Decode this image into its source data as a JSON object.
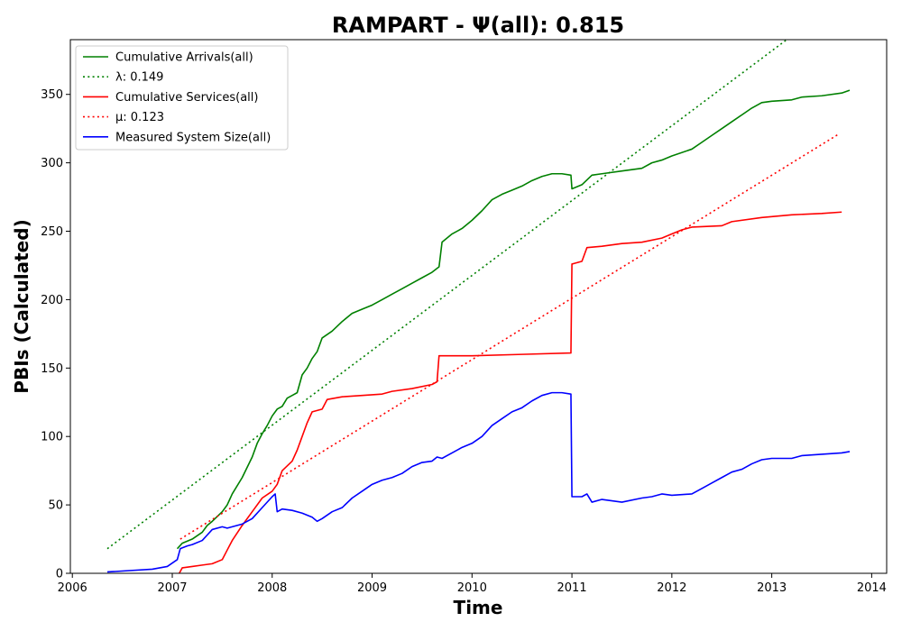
{
  "chart_data": {
    "type": "line",
    "title": "RAMPART -  Ψ(all): 0.815",
    "xlabel": "Time",
    "ylabel": "PBIs (Calculated)",
    "xlim": [
      2005.98,
      2014.15
    ],
    "ylim": [
      0,
      390
    ],
    "x_ticks": [
      "2006",
      "2007",
      "2008",
      "2009",
      "2010",
      "2011",
      "2012",
      "2013",
      "2014"
    ],
    "x_tick_values": [
      2006,
      2007,
      2008,
      2009,
      2010,
      2011,
      2012,
      2013,
      2014
    ],
    "y_ticks": [
      "0",
      "50",
      "100",
      "150",
      "200",
      "250",
      "300",
      "350"
    ],
    "y_tick_values": [
      0,
      50,
      100,
      150,
      200,
      250,
      300,
      350
    ],
    "grid": false,
    "legend_position": "top-left",
    "series": [
      {
        "name": "Cumulative Arrivals(all)",
        "color": "#008000",
        "style": "solid",
        "points": [
          [
            2007.05,
            18
          ],
          [
            2007.1,
            22
          ],
          [
            2007.2,
            25
          ],
          [
            2007.3,
            30
          ],
          [
            2007.35,
            35
          ],
          [
            2007.4,
            38
          ],
          [
            2007.5,
            45
          ],
          [
            2007.55,
            50
          ],
          [
            2007.6,
            58
          ],
          [
            2007.7,
            70
          ],
          [
            2007.8,
            85
          ],
          [
            2007.85,
            95
          ],
          [
            2007.9,
            102
          ],
          [
            2007.95,
            108
          ],
          [
            2008.0,
            115
          ],
          [
            2008.05,
            120
          ],
          [
            2008.1,
            122
          ],
          [
            2008.15,
            128
          ],
          [
            2008.2,
            130
          ],
          [
            2008.25,
            132
          ],
          [
            2008.3,
            145
          ],
          [
            2008.35,
            150
          ],
          [
            2008.4,
            157
          ],
          [
            2008.45,
            162
          ],
          [
            2008.5,
            172
          ],
          [
            2008.6,
            177
          ],
          [
            2008.7,
            184
          ],
          [
            2008.8,
            190
          ],
          [
            2008.9,
            193
          ],
          [
            2009.0,
            196
          ],
          [
            2009.1,
            200
          ],
          [
            2009.2,
            204
          ],
          [
            2009.3,
            208
          ],
          [
            2009.4,
            212
          ],
          [
            2009.5,
            216
          ],
          [
            2009.6,
            220
          ],
          [
            2009.67,
            224
          ],
          [
            2009.7,
            242
          ],
          [
            2009.8,
            248
          ],
          [
            2009.9,
            252
          ],
          [
            2010.0,
            258
          ],
          [
            2010.1,
            265
          ],
          [
            2010.2,
            273
          ],
          [
            2010.3,
            277
          ],
          [
            2010.4,
            280
          ],
          [
            2010.5,
            283
          ],
          [
            2010.6,
            287
          ],
          [
            2010.7,
            290
          ],
          [
            2010.8,
            292
          ],
          [
            2010.9,
            292
          ],
          [
            2010.99,
            291
          ],
          [
            2011.0,
            281
          ],
          [
            2011.1,
            284
          ],
          [
            2011.2,
            291
          ],
          [
            2011.3,
            292
          ],
          [
            2011.5,
            294
          ],
          [
            2011.7,
            296
          ],
          [
            2011.8,
            300
          ],
          [
            2011.9,
            302
          ],
          [
            2012.0,
            305
          ],
          [
            2012.2,
            310
          ],
          [
            2012.3,
            315
          ],
          [
            2012.4,
            320
          ],
          [
            2012.5,
            325
          ],
          [
            2012.6,
            330
          ],
          [
            2012.7,
            335
          ],
          [
            2012.8,
            340
          ],
          [
            2012.9,
            344
          ],
          [
            2013.0,
            345
          ],
          [
            2013.2,
            346
          ],
          [
            2013.3,
            348
          ],
          [
            2013.5,
            349
          ],
          [
            2013.7,
            351
          ],
          [
            2013.78,
            353
          ]
        ]
      },
      {
        "name": "λ: 0.149",
        "color": "#008000",
        "style": "dotted",
        "points": [
          [
            2006.35,
            18
          ],
          [
            2013.15,
            390
          ]
        ]
      },
      {
        "name": "Cumulative Services(all)",
        "color": "#ff0000",
        "style": "solid",
        "points": [
          [
            2007.07,
            0
          ],
          [
            2007.1,
            4
          ],
          [
            2007.2,
            5
          ],
          [
            2007.3,
            6
          ],
          [
            2007.4,
            7
          ],
          [
            2007.5,
            10
          ],
          [
            2007.55,
            17
          ],
          [
            2007.6,
            24
          ],
          [
            2007.7,
            35
          ],
          [
            2007.8,
            45
          ],
          [
            2007.9,
            55
          ],
          [
            2008.0,
            60
          ],
          [
            2008.05,
            65
          ],
          [
            2008.1,
            75
          ],
          [
            2008.2,
            82
          ],
          [
            2008.25,
            90
          ],
          [
            2008.3,
            100
          ],
          [
            2008.35,
            110
          ],
          [
            2008.4,
            118
          ],
          [
            2008.5,
            120
          ],
          [
            2008.55,
            127
          ],
          [
            2008.7,
            129
          ],
          [
            2008.9,
            130
          ],
          [
            2009.1,
            131
          ],
          [
            2009.2,
            133
          ],
          [
            2009.4,
            135
          ],
          [
            2009.6,
            138
          ],
          [
            2009.65,
            140
          ],
          [
            2009.67,
            159
          ],
          [
            2010.0,
            159
          ],
          [
            2010.5,
            160
          ],
          [
            2010.99,
            161
          ],
          [
            2011.0,
            226
          ],
          [
            2011.1,
            228
          ],
          [
            2011.15,
            238
          ],
          [
            2011.3,
            239
          ],
          [
            2011.5,
            241
          ],
          [
            2011.7,
            242
          ],
          [
            2011.9,
            245
          ],
          [
            2012.0,
            248
          ],
          [
            2012.1,
            251
          ],
          [
            2012.2,
            253
          ],
          [
            2012.5,
            254
          ],
          [
            2012.6,
            257
          ],
          [
            2012.9,
            260
          ],
          [
            2013.2,
            262
          ],
          [
            2013.5,
            263
          ],
          [
            2013.7,
            264
          ]
        ]
      },
      {
        "name": "μ: 0.123",
        "color": "#ff0000",
        "style": "dotted",
        "points": [
          [
            2007.08,
            25
          ],
          [
            2013.67,
            321
          ]
        ]
      },
      {
        "name": "Measured System Size(all)",
        "color": "#0000ff",
        "style": "solid",
        "points": [
          [
            2006.35,
            1
          ],
          [
            2006.8,
            3
          ],
          [
            2006.95,
            5
          ],
          [
            2007.05,
            10
          ],
          [
            2007.08,
            18
          ],
          [
            2007.15,
            20
          ],
          [
            2007.2,
            21
          ],
          [
            2007.3,
            24
          ],
          [
            2007.35,
            28
          ],
          [
            2007.4,
            32
          ],
          [
            2007.5,
            34
          ],
          [
            2007.55,
            33
          ],
          [
            2007.6,
            34
          ],
          [
            2007.7,
            36
          ],
          [
            2007.8,
            40
          ],
          [
            2007.9,
            48
          ],
          [
            2008.0,
            56
          ],
          [
            2008.03,
            58
          ],
          [
            2008.05,
            45
          ],
          [
            2008.1,
            47
          ],
          [
            2008.2,
            46
          ],
          [
            2008.3,
            44
          ],
          [
            2008.4,
            41
          ],
          [
            2008.45,
            38
          ],
          [
            2008.5,
            40
          ],
          [
            2008.6,
            45
          ],
          [
            2008.7,
            48
          ],
          [
            2008.8,
            55
          ],
          [
            2008.9,
            60
          ],
          [
            2009.0,
            65
          ],
          [
            2009.1,
            68
          ],
          [
            2009.2,
            70
          ],
          [
            2009.3,
            73
          ],
          [
            2009.4,
            78
          ],
          [
            2009.5,
            81
          ],
          [
            2009.6,
            82
          ],
          [
            2009.65,
            85
          ],
          [
            2009.7,
            84
          ],
          [
            2009.8,
            88
          ],
          [
            2009.9,
            92
          ],
          [
            2010.0,
            95
          ],
          [
            2010.1,
            100
          ],
          [
            2010.2,
            108
          ],
          [
            2010.3,
            113
          ],
          [
            2010.4,
            118
          ],
          [
            2010.5,
            121
          ],
          [
            2010.6,
            126
          ],
          [
            2010.7,
            130
          ],
          [
            2010.8,
            132
          ],
          [
            2010.9,
            132
          ],
          [
            2010.99,
            131
          ],
          [
            2011.0,
            56
          ],
          [
            2011.1,
            56
          ],
          [
            2011.15,
            58
          ],
          [
            2011.2,
            52
          ],
          [
            2011.3,
            54
          ],
          [
            2011.5,
            52
          ],
          [
            2011.7,
            55
          ],
          [
            2011.8,
            56
          ],
          [
            2011.9,
            58
          ],
          [
            2012.0,
            57
          ],
          [
            2012.2,
            58
          ],
          [
            2012.3,
            62
          ],
          [
            2012.4,
            66
          ],
          [
            2012.5,
            70
          ],
          [
            2012.6,
            74
          ],
          [
            2012.7,
            76
          ],
          [
            2012.8,
            80
          ],
          [
            2012.9,
            83
          ],
          [
            2013.0,
            84
          ],
          [
            2013.2,
            84
          ],
          [
            2013.3,
            86
          ],
          [
            2013.5,
            87
          ],
          [
            2013.7,
            88
          ],
          [
            2013.78,
            89
          ]
        ]
      }
    ]
  }
}
